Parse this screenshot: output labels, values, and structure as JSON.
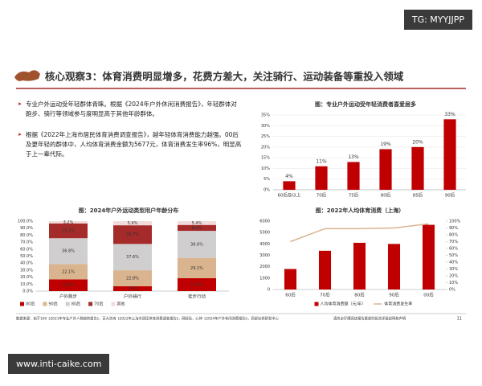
{
  "watermark_top": "TG: MYYJJPP",
  "watermark_bottom": "www.inti-caike.com",
  "header": {
    "title": "核心观察3：体育消费明显增多，花费方差大，关注骑行、运动装备等重投入领域"
  },
  "bullets": [
    "专业户外运动受年轻群体青睐。根据《2024年户外休闲消费报告》，年轻群体对跑步、骑行等领域参与度明显高于其他年龄群体。",
    "根据《2022年上海市居民体育消费调查报告》，越年轻体育消费能力越强。00后及更年轻的群体中，人均体育消费金额为5677元，体育消费发生率96%，明显高于上一辈代际。"
  ],
  "footer": {
    "source": "数据来源：始于100《2021年专业户外人群趋势报告》，百大咨询《2022年上海市居民体育消费调查报告》，网经社，心体《2024年户外休闲消费报告》，西部证券研发中心",
    "disclaimer": "请务必仔细阅读报告尾部的投资评级说明和声明",
    "page": "11"
  },
  "chart_data": [
    {
      "type": "bar",
      "title": "图：专业户外运动受年轻消费者喜爱居多",
      "categories": [
        "60后及以上",
        "70后",
        "75后",
        "80后",
        "85后",
        "90后"
      ],
      "values": [
        4,
        11,
        13,
        19,
        20,
        33
      ],
      "value_labels": [
        "4%",
        "11%",
        "13%",
        "19%",
        "20%",
        "33%"
      ],
      "color": "#c00000",
      "ylim": [
        0,
        35
      ],
      "yticks": [
        {
          "value": 0,
          "label": "0%"
        },
        {
          "value": 5,
          "label": "5%"
        },
        {
          "value": 10,
          "label": "10%"
        },
        {
          "value": 15,
          "label": "15%"
        },
        {
          "value": 20,
          "label": "20%"
        },
        {
          "value": 25,
          "label": "25%"
        },
        {
          "value": 30,
          "label": "30%"
        },
        {
          "value": 35,
          "label": "35%"
        }
      ],
      "grid": true
    },
    {
      "type": "stacked_bar",
      "title": "图：2024年户外运动类型用户年龄分布",
      "categories": [
        "户外跑步",
        "户外骑行",
        "徒步行动"
      ],
      "series": [
        {
          "name": "00后",
          "color": "#c00000",
          "values": [
            16.7,
            7.0,
            18.4
          ],
          "value_labels": [
            "16.7%",
            "7.0%",
            "18.4%"
          ]
        },
        {
          "name": "90后",
          "color": "#d9b48f",
          "values": [
            22.1,
            22.8,
            29.1
          ],
          "value_labels": [
            "22.1%",
            "22.8%",
            "29.1%"
          ]
        },
        {
          "name": "80后",
          "color": "#d0cece",
          "values": [
            36.8,
            37.6,
            38.6
          ],
          "value_labels": [
            "36.8%",
            "37.6%",
            "38.6%"
          ]
        },
        {
          "name": "70后",
          "color": "#a52a2a",
          "values": [
            21.2,
            26.7,
            8.5
          ],
          "value_labels": [
            "21.2%",
            "26.7%",
            "8.5%"
          ]
        },
        {
          "name": "其他",
          "color": "#f2dcdb",
          "values": [
            3.2,
            5.9,
            5.4
          ],
          "value_labels": [
            "3.2%",
            "5.9%",
            "5.4%"
          ]
        }
      ],
      "ylim": [
        0,
        100
      ],
      "yticks": [
        {
          "value": 0,
          "label": "0.0%"
        },
        {
          "value": 10,
          "label": "10.0%"
        },
        {
          "value": 20,
          "label": "20.0%"
        },
        {
          "value": 30,
          "label": "30.0%"
        },
        {
          "value": 40,
          "label": "40.0%"
        },
        {
          "value": 50,
          "label": "50.0%"
        },
        {
          "value": 60,
          "label": "60.0%"
        },
        {
          "value": 70,
          "label": "70.0%"
        },
        {
          "value": 80,
          "label": "80.0%"
        },
        {
          "value": 90,
          "label": "90.0%"
        },
        {
          "value": 100,
          "label": "100.0%"
        }
      ]
    },
    {
      "type": "bar_line",
      "title": "图：2022年人均体育消费（上海）",
      "categories": [
        "60后",
        "70后",
        "80后",
        "90后",
        "00后"
      ],
      "series": [
        {
          "name": "人均体育消费额（元/年）",
          "color": "#c00000",
          "values": [
            1800,
            3400,
            4100,
            4000,
            5677
          ]
        },
        {
          "name": "体育消费发生率",
          "color": "#d9b48f",
          "axis": "y2",
          "values": [
            70,
            89,
            89,
            90,
            96
          ]
        }
      ],
      "ylim": [
        0,
        6000
      ],
      "yticks": [
        0,
        1000,
        2000,
        3000,
        4000,
        5000,
        6000
      ],
      "y2lim": [
        0,
        100
      ],
      "y2ticks": [
        {
          "value": 0,
          "label": "0%"
        },
        {
          "value": 10,
          "label": "10%"
        },
        {
          "value": 20,
          "label": "20%"
        },
        {
          "value": 30,
          "label": "30%"
        },
        {
          "value": 40,
          "label": "40%"
        },
        {
          "value": 50,
          "label": "50%"
        },
        {
          "value": 60,
          "label": "60%"
        },
        {
          "value": 70,
          "label": "70%"
        },
        {
          "value": 80,
          "label": "80%"
        },
        {
          "value": 90,
          "label": "90%"
        },
        {
          "value": 100,
          "label": "100%"
        }
      ]
    }
  ]
}
